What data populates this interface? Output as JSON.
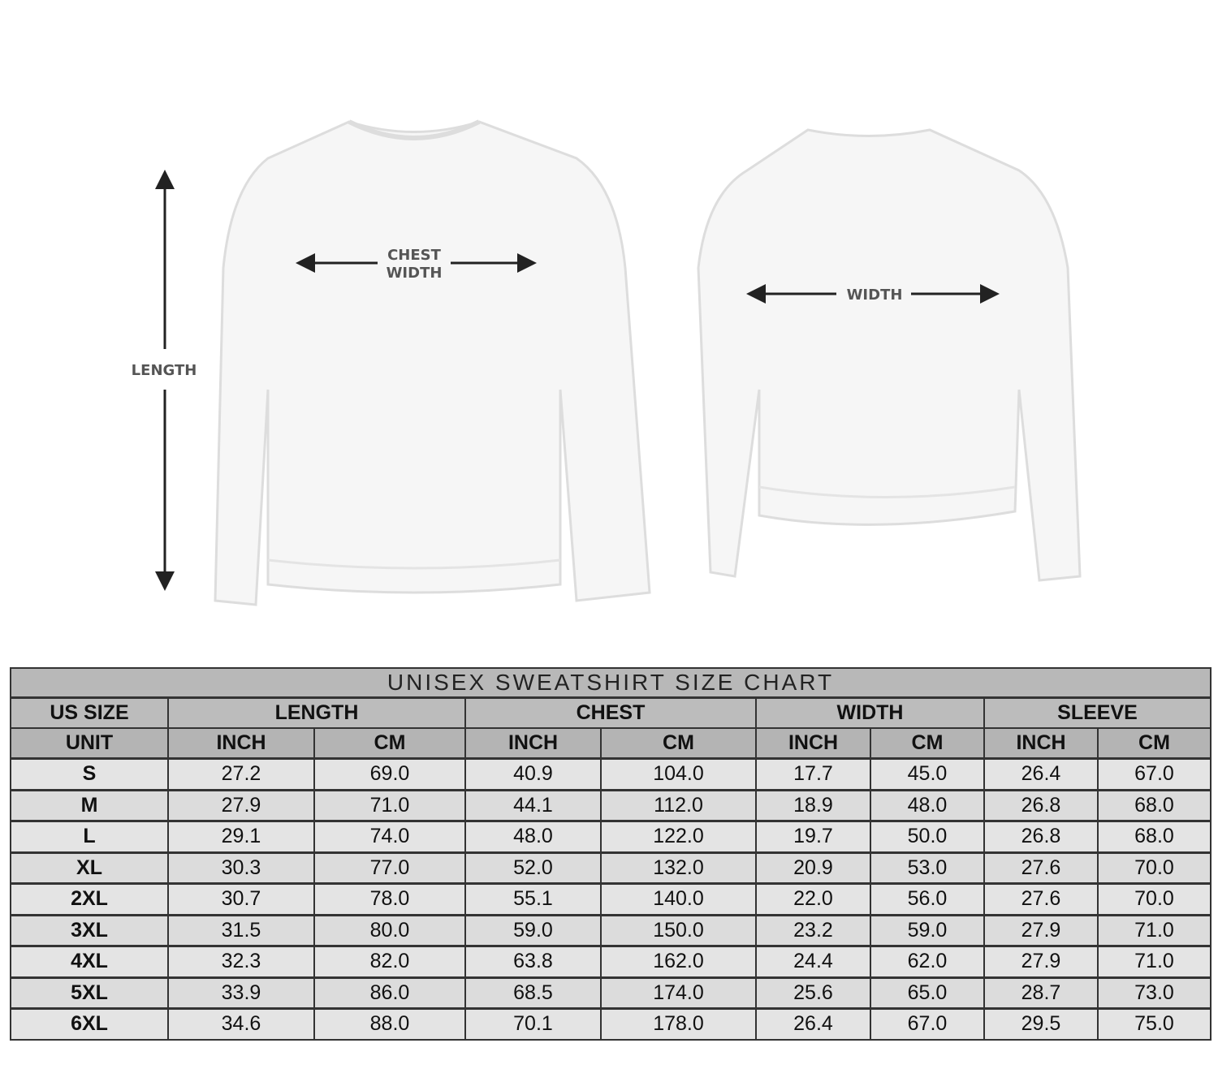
{
  "illustration": {
    "front_labels": {
      "length": "LENGTH",
      "chest_line1": "CHEST",
      "chest_line2": "WIDTH"
    },
    "back_labels": {
      "width": "WIDTH"
    }
  },
  "table": {
    "title": "UNISEX SWEATSHIRT SIZE CHART",
    "groups": [
      "US SIZE",
      "LENGTH",
      "CHEST",
      "WIDTH",
      "SLEEVE"
    ],
    "unit_label": "UNIT",
    "units": [
      "INCH",
      "CM",
      "INCH",
      "CM",
      "INCH",
      "CM",
      "INCH",
      "CM"
    ],
    "rows": [
      [
        "S",
        "27.2",
        "69.0",
        "40.9",
        "104.0",
        "17.7",
        "45.0",
        "26.4",
        "67.0"
      ],
      [
        "M",
        "27.9",
        "71.0",
        "44.1",
        "112.0",
        "18.9",
        "48.0",
        "26.8",
        "68.0"
      ],
      [
        "L",
        "29.1",
        "74.0",
        "48.0",
        "122.0",
        "19.7",
        "50.0",
        "26.8",
        "68.0"
      ],
      [
        "XL",
        "30.3",
        "77.0",
        "52.0",
        "132.0",
        "20.9",
        "53.0",
        "27.6",
        "70.0"
      ],
      [
        "2XL",
        "30.7",
        "78.0",
        "55.1",
        "140.0",
        "22.0",
        "56.0",
        "27.6",
        "70.0"
      ],
      [
        "3XL",
        "31.5",
        "80.0",
        "59.0",
        "150.0",
        "23.2",
        "59.0",
        "27.9",
        "71.0"
      ],
      [
        "4XL",
        "32.3",
        "82.0",
        "63.8",
        "162.0",
        "24.4",
        "62.0",
        "27.9",
        "71.0"
      ],
      [
        "5XL",
        "33.9",
        "86.0",
        "68.5",
        "174.0",
        "25.6",
        "65.0",
        "28.7",
        "73.0"
      ],
      [
        "6XL",
        "34.6",
        "88.0",
        "70.1",
        "178.0",
        "26.4",
        "67.0",
        "29.5",
        "75.0"
      ]
    ]
  }
}
